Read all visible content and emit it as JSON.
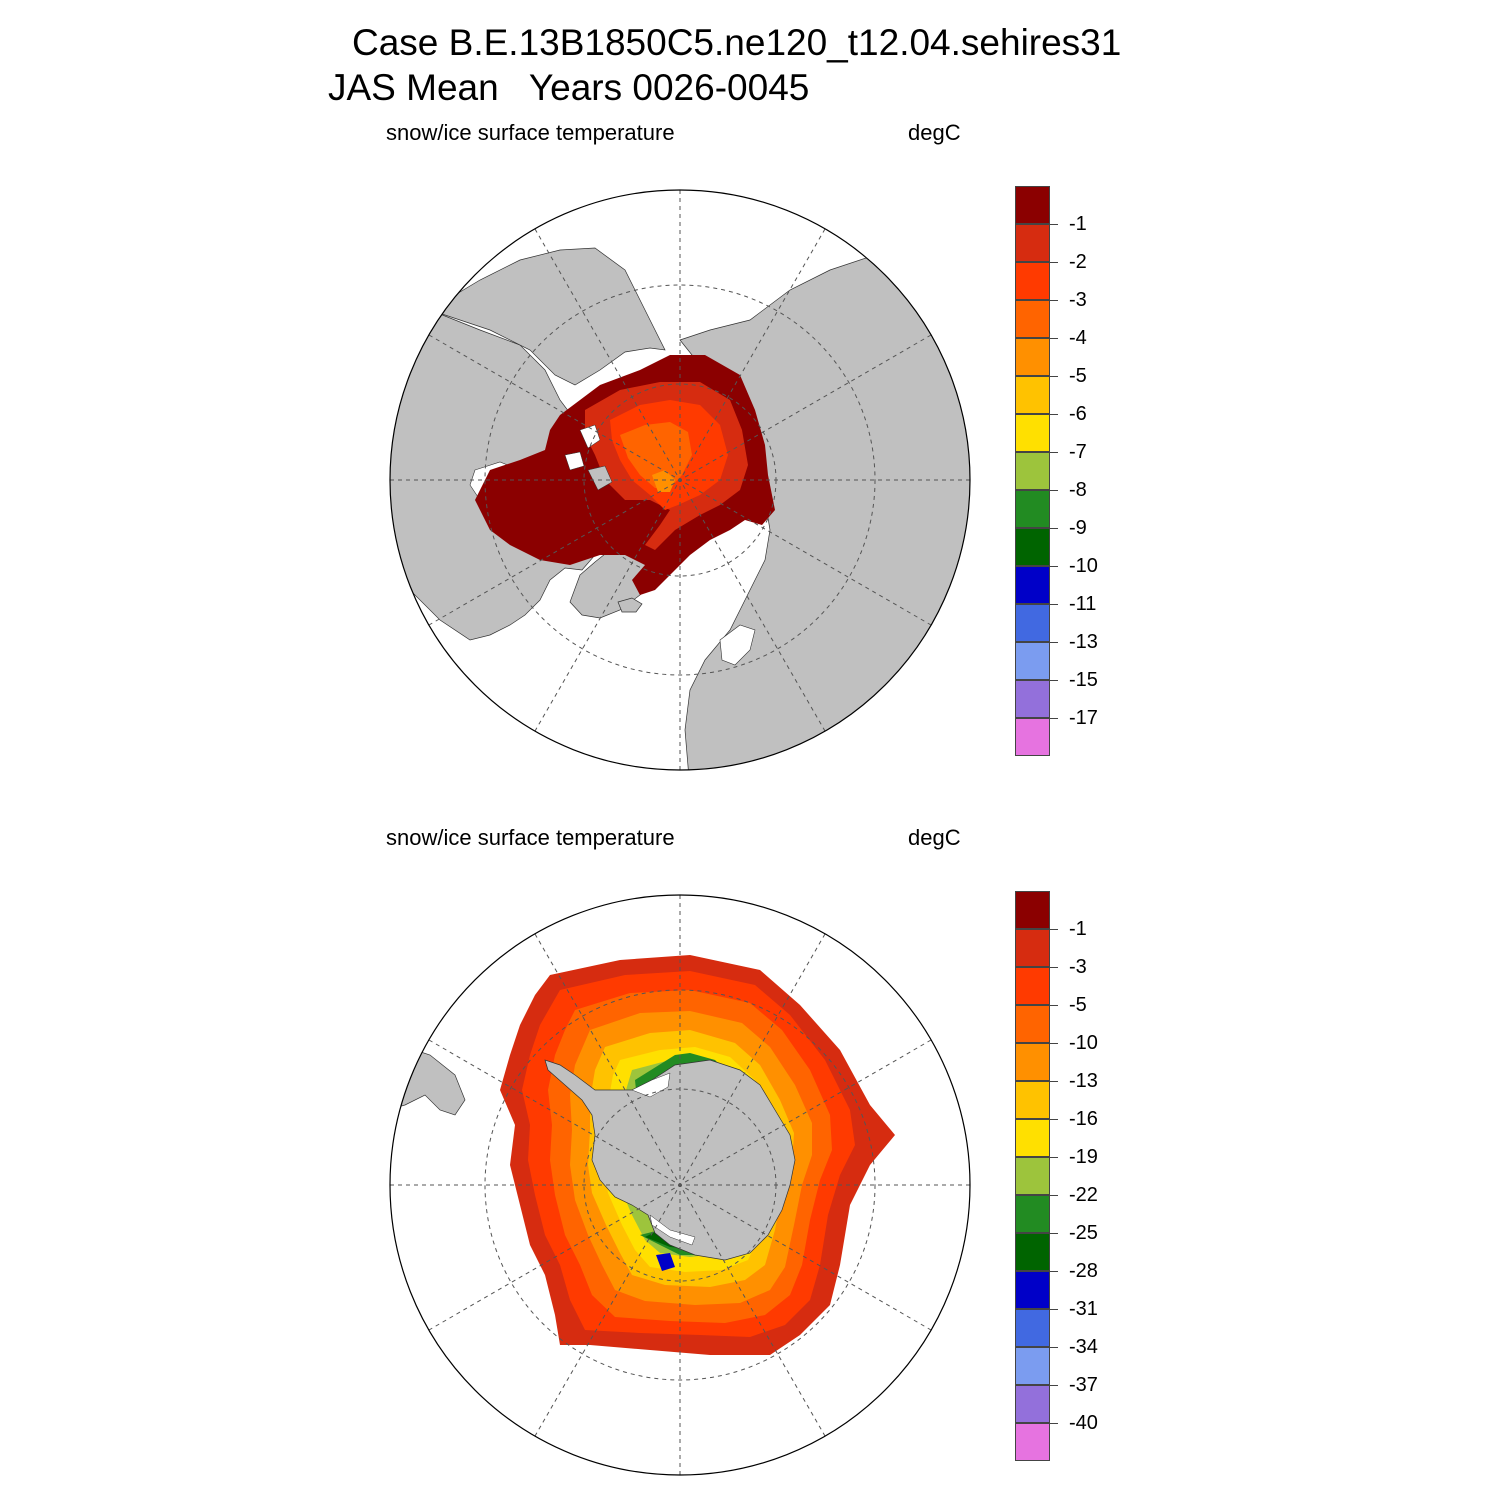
{
  "title_line1": "Case B.E.13B1850C5.ne120_t12.04.sehires31",
  "title_line2": "JAS Mean   Years 0026-0045",
  "colors": {
    "land": "#c0c0c0",
    "ocean": "#ffffff",
    "grid": "#555555",
    "palette": [
      "#8b0000",
      "#d62c10",
      "#ff3a00",
      "#ff6400",
      "#ff9000",
      "#ffc200",
      "#ffe000",
      "#9dc43c",
      "#228b22",
      "#006400",
      "#0000c8",
      "#4169e1",
      "#7b9cf0",
      "#9370db",
      "#e673e0"
    ]
  },
  "chart_data": [
    {
      "type": "heatmap",
      "projection": "north-polar-stereographic",
      "left_string": "snow/ice surface temperature",
      "right_string": "degC",
      "colorbar_labels": [
        "-1",
        "-2",
        "-3",
        "-4",
        "-5",
        "-6",
        "-7",
        "-8",
        "-9",
        "-10",
        "-11",
        "-13",
        "-15",
        "-17"
      ],
      "levels": [
        -1,
        -2,
        -3,
        -4,
        -5,
        -6,
        -7,
        -8,
        -9,
        -10,
        -11,
        -13,
        -15,
        -17
      ],
      "ice_field": "Arctic sea ice -1 to -4 degC, warmest (-1) at ice edge and marginal seas, coolest (~-4) in central Arctic north of Greenland"
    },
    {
      "type": "heatmap",
      "projection": "south-polar-stereographic",
      "left_string": "snow/ice surface temperature",
      "right_string": "degC",
      "colorbar_labels": [
        "-1",
        "-3",
        "-5",
        "-10",
        "-13",
        "-16",
        "-19",
        "-22",
        "-25",
        "-28",
        "-31",
        "-34",
        "-37",
        "-40"
      ],
      "levels": [
        -1,
        -3,
        -5,
        -10,
        -13,
        -16,
        -19,
        -22,
        -25,
        -28,
        -31,
        -34,
        -37,
        -40
      ],
      "ice_field": "Antarctic sea ice ring, -1 to -5 at outer edge, decreasing to -25..-31 near coast in Weddell and Ross Seas"
    }
  ]
}
